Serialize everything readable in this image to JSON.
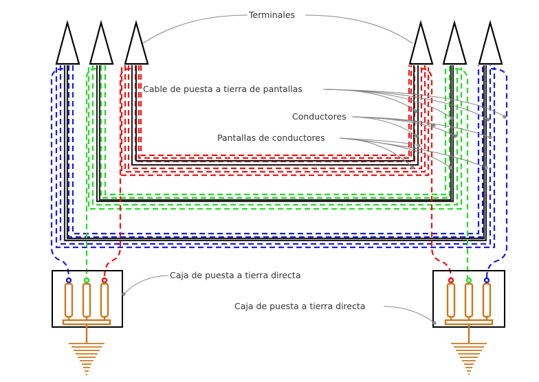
{
  "labels": {
    "terminales": "Terminales",
    "cable_tierra_pantallas": "Cable de puesta a tierra de pantallas",
    "conductores": "Conductores",
    "pantallas_conductores": "Pantallas de conductores",
    "caja_izquierda": "Caja de puesta a tierra directa",
    "caja_derecha": "Caja de puesta a tierra directa"
  },
  "colors": {
    "phase_blue": "#1a1adf",
    "phase_green": "#22dd22",
    "phase_red": "#ee1111",
    "shield_black": "#222222",
    "ground_bronze": "#c8781e",
    "leader_gray": "#8a8a8a",
    "outline": "#000000"
  },
  "icons": {
    "terminal": "triangle-terminal-icon",
    "ground": "earth-ground-icon",
    "arrester": "surge-arrester-icon"
  }
}
